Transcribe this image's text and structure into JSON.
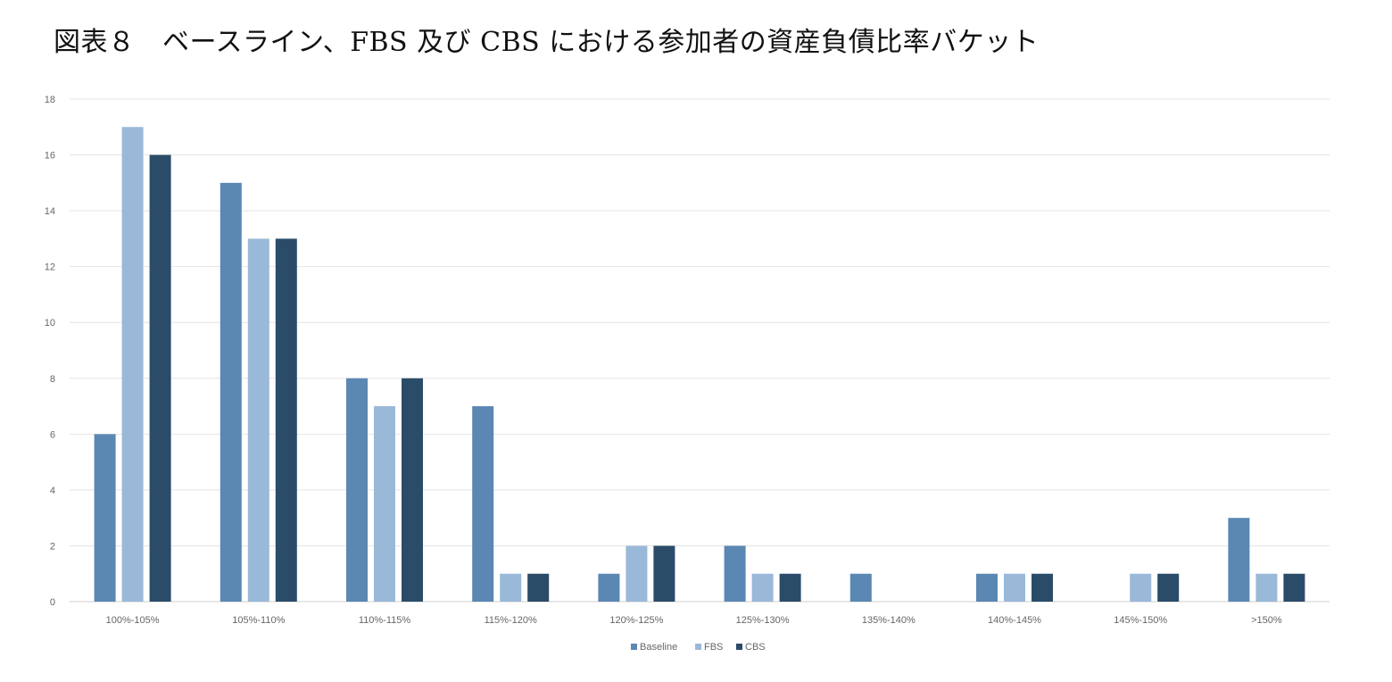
{
  "title": "図表８　ベースライン、FBS 及び CBS における参加者の資産負債比率バケット",
  "chart_data": {
    "type": "bar",
    "title": "図表８　ベースライン、FBS 及び CBS における参加者の資産負債比率バケット",
    "xlabel": "",
    "ylabel": "",
    "ylim": [
      0,
      18
    ],
    "yticks": [
      0,
      2,
      4,
      6,
      8,
      10,
      12,
      14,
      16,
      18
    ],
    "grid": true,
    "legend_position": "bottom-center",
    "categories": [
      "100%-105%",
      "105%-110%",
      "110%-115%",
      "115%-120%",
      "120%-125%",
      "125%-130%",
      "135%-140%",
      "140%-145%",
      "145%-150%",
      ">150%"
    ],
    "series": [
      {
        "name": "Baseline",
        "color": "#5b87b3",
        "values": [
          6,
          15,
          8,
          7,
          1,
          2,
          1,
          1,
          0,
          3
        ]
      },
      {
        "name": "FBS",
        "color": "#9ab9d8",
        "values": [
          17,
          13,
          7,
          1,
          2,
          1,
          0,
          1,
          1,
          1
        ]
      },
      {
        "name": "CBS",
        "color": "#2b4c68",
        "values": [
          16,
          13,
          8,
          1,
          2,
          1,
          0,
          1,
          1,
          1
        ]
      }
    ]
  }
}
